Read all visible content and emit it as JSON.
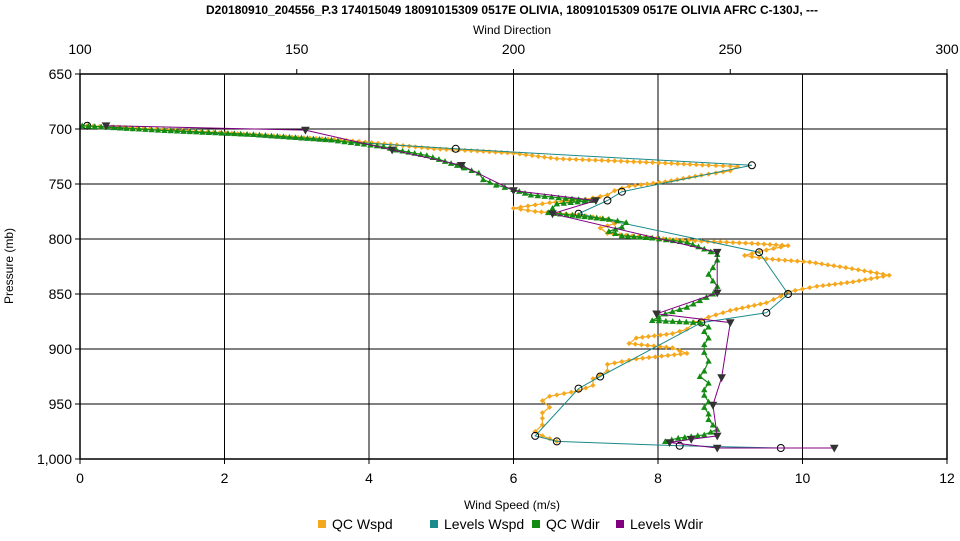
{
  "chart_data": {
    "type": "line",
    "title": "D20180910_204556_P.3 174015049 18091015309 0517E OLIVIA, 18091015309 0517E OLIVIA AFRC C-130J, ---",
    "xlabel": "Wind Speed (m/s)",
    "x2label": "Wind Direction",
    "ylabel": "Pressure (mb)",
    "xlim": [
      0,
      12
    ],
    "x2lim": [
      100,
      300
    ],
    "ylim": [
      650,
      1000
    ],
    "y_inverted": true,
    "grid": true,
    "legend_position": "bottom",
    "x_ticks": [
      "0",
      "2",
      "4",
      "6",
      "8",
      "10",
      "12"
    ],
    "x2_ticks": [
      "100",
      "150",
      "200",
      "250",
      "300"
    ],
    "y_ticks": [
      "650",
      "700",
      "750",
      "800",
      "850",
      "900",
      "950",
      "1,000"
    ],
    "y_tick_values": [
      650,
      700,
      750,
      800,
      850,
      900,
      950,
      1000
    ],
    "series": [
      {
        "name": "QC Wspd",
        "axis": "bottom",
        "color": "#f5a81c",
        "marker": "diamond",
        "points": [
          [
            0.1,
            697
          ],
          [
            0.7,
            699
          ],
          [
            1.6,
            702
          ],
          [
            2.6,
            706
          ],
          [
            3.6,
            710
          ],
          [
            4.3,
            714
          ],
          [
            4.9,
            718
          ],
          [
            5.5,
            720
          ],
          [
            6.0,
            722
          ],
          [
            6.6,
            727
          ],
          [
            7.4,
            729
          ],
          [
            8.1,
            731
          ],
          [
            8.7,
            733
          ],
          [
            9.1,
            734
          ],
          [
            9.0,
            738
          ],
          [
            8.6,
            742
          ],
          [
            8.1,
            748
          ],
          [
            7.6,
            752
          ],
          [
            7.4,
            756
          ],
          [
            7.3,
            760
          ],
          [
            7.0,
            764
          ],
          [
            6.5,
            767
          ],
          [
            6.2,
            770
          ],
          [
            6.0,
            772
          ],
          [
            6.3,
            775
          ],
          [
            6.9,
            778
          ],
          [
            7.3,
            782
          ],
          [
            7.4,
            786
          ],
          [
            7.2,
            790
          ],
          [
            7.3,
            795
          ],
          [
            7.9,
            799
          ],
          [
            8.6,
            802
          ],
          [
            9.3,
            804
          ],
          [
            9.8,
            806
          ],
          [
            9.5,
            810
          ],
          [
            9.2,
            815
          ],
          [
            9.5,
            818
          ],
          [
            10.1,
            821
          ],
          [
            10.6,
            826
          ],
          [
            11.2,
            833
          ],
          [
            10.7,
            839
          ],
          [
            10.2,
            843
          ],
          [
            9.8,
            848
          ],
          [
            9.7,
            852
          ],
          [
            9.5,
            858
          ],
          [
            9.0,
            865
          ],
          [
            8.7,
            871
          ],
          [
            8.5,
            876
          ],
          [
            8.4,
            882
          ],
          [
            8.2,
            886
          ],
          [
            7.7,
            890
          ],
          [
            7.6,
            895
          ],
          [
            8.2,
            899
          ],
          [
            8.4,
            904
          ],
          [
            7.7,
            909
          ],
          [
            7.3,
            914
          ],
          [
            7.3,
            920
          ],
          [
            7.1,
            927
          ],
          [
            7.1,
            933
          ],
          [
            6.9,
            938
          ],
          [
            6.5,
            943
          ],
          [
            6.4,
            947
          ],
          [
            6.5,
            953
          ],
          [
            6.4,
            958
          ],
          [
            6.4,
            963
          ],
          [
            6.4,
            969
          ],
          [
            6.3,
            975
          ],
          [
            6.4,
            979
          ],
          [
            6.6,
            984
          ]
        ]
      },
      {
        "name": "Levels Wspd",
        "axis": "bottom",
        "color": "#1a8a8a",
        "marker": "circle",
        "points": [
          [
            0.1,
            697
          ],
          [
            5.2,
            718
          ],
          [
            9.3,
            733
          ],
          [
            7.5,
            757
          ],
          [
            7.3,
            765
          ],
          [
            6.9,
            777
          ],
          [
            9.4,
            812
          ],
          [
            9.8,
            850
          ],
          [
            9.5,
            867
          ],
          [
            8.6,
            876
          ],
          [
            7.2,
            925
          ],
          [
            6.9,
            936
          ],
          [
            6.3,
            979
          ],
          [
            6.6,
            984
          ],
          [
            8.3,
            988
          ],
          [
            9.7,
            990
          ]
        ]
      },
      {
        "name": "QC Wdir",
        "axis": "top",
        "color": "#148c14",
        "marker": "triangle",
        "points": [
          [
            100.5,
            697
          ],
          [
            118,
            701
          ],
          [
            140,
            705
          ],
          [
            158,
            710
          ],
          [
            170,
            716
          ],
          [
            173,
            719
          ],
          [
            180,
            724
          ],
          [
            187,
            733
          ],
          [
            192,
            740
          ],
          [
            193,
            746
          ],
          [
            196,
            751
          ],
          [
            200,
            755
          ],
          [
            204,
            760
          ],
          [
            212,
            763
          ],
          [
            218,
            765
          ],
          [
            210,
            768
          ],
          [
            209,
            772
          ],
          [
            208,
            776
          ],
          [
            215,
            779
          ],
          [
            222,
            782
          ],
          [
            226,
            785
          ],
          [
            225,
            789
          ],
          [
            222,
            793
          ],
          [
            225,
            797
          ],
          [
            232,
            799
          ],
          [
            240,
            803
          ],
          [
            244,
            809
          ],
          [
            247,
            814
          ],
          [
            247,
            819
          ],
          [
            246,
            826
          ],
          [
            245,
            832
          ],
          [
            246,
            838
          ],
          [
            247,
            843
          ],
          [
            246,
            850
          ],
          [
            243,
            856
          ],
          [
            240,
            862
          ],
          [
            235,
            868
          ],
          [
            232,
            874
          ],
          [
            243,
            876
          ],
          [
            245,
            880
          ],
          [
            244,
            884
          ],
          [
            245,
            890
          ],
          [
            244,
            896
          ],
          [
            244,
            903
          ],
          [
            245,
            911
          ],
          [
            244,
            920
          ],
          [
            243,
            925
          ],
          [
            245,
            931
          ],
          [
            244,
            937
          ],
          [
            244,
            942
          ],
          [
            245,
            948
          ],
          [
            244,
            953
          ],
          [
            245,
            959
          ],
          [
            245,
            964
          ],
          [
            246,
            969
          ],
          [
            247,
            973
          ],
          [
            244,
            978
          ],
          [
            238,
            981
          ],
          [
            235,
            984
          ]
        ]
      },
      {
        "name": "Levels Wdir",
        "axis": "top",
        "color": "#800080",
        "marker": "triangle-down",
        "points": [
          [
            106,
            697
          ],
          [
            152,
            701
          ],
          [
            172,
            719
          ],
          [
            188,
            733
          ],
          [
            200,
            756
          ],
          [
            219,
            765
          ],
          [
            209,
            777
          ],
          [
            247,
            812
          ],
          [
            247,
            849
          ],
          [
            233,
            868
          ],
          [
            250,
            876
          ],
          [
            248,
            926
          ],
          [
            246,
            951
          ],
          [
            247,
            979
          ],
          [
            241,
            982
          ],
          [
            236,
            985
          ],
          [
            247,
            990
          ],
          [
            274,
            990
          ]
        ]
      }
    ]
  }
}
